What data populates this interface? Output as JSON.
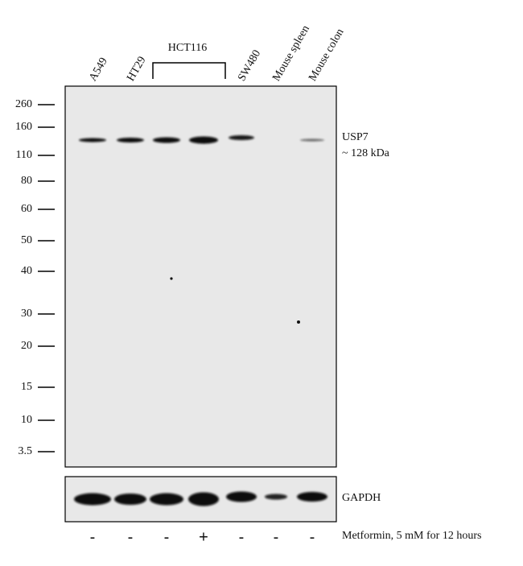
{
  "lanes": [
    "A549",
    "HT29",
    "HCT116",
    "SW480",
    "Mouse spleen",
    "Mouse colon"
  ],
  "lane_labels": [
    "A549",
    "HT29",
    "SW480",
    "Mouse spleen",
    "Mouse colon"
  ],
  "group_label": "HCT116",
  "markers": [
    "260",
    "160",
    "110",
    "80",
    "60",
    "50",
    "40",
    "30",
    "20",
    "15",
    "10",
    "3.5"
  ],
  "target": {
    "name": "USP7",
    "size": "~ 128 kDa"
  },
  "loading_control": "GAPDH",
  "treatment": {
    "signs": [
      "-",
      "-",
      "-",
      "+",
      "-",
      "-",
      "-"
    ],
    "label": "Metformin,  5 mM for 12 hours"
  }
}
